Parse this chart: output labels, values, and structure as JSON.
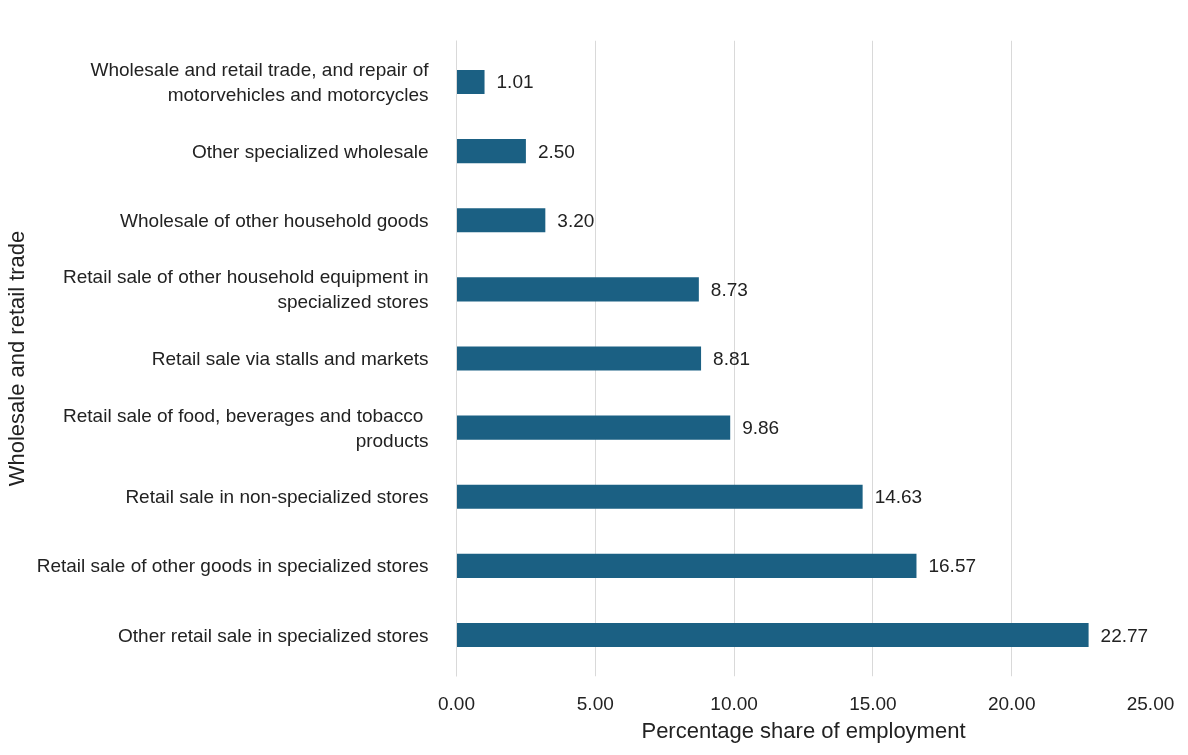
{
  "chart_data": {
    "type": "bar",
    "orientation": "horizontal",
    "xlabel": "Percentage share of employment",
    "ylabel": "Wholesale and retail trade",
    "categories": [
      "Wholesale and retail trade, and repair of\nmotorvehicles and motorcycles",
      "Other specialized wholesale",
      "Wholesale of other household goods",
      "Retail sale of other household equipment in\nspecialized stores",
      "Retail sale via stalls and markets",
      "Retail sale of food,  beverages and tobacco\nproducts",
      "Retail sale in non-specialized stores",
      "Retail sale of other goods in specialized stores",
      "Other retail sale in specialized stores"
    ],
    "values": [
      1.01,
      2.5,
      3.2,
      8.73,
      8.81,
      9.86,
      14.63,
      16.57,
      22.77
    ],
    "value_labels": [
      "1.01",
      "2.50",
      "3.20",
      "8.73",
      "8.81",
      "9.86",
      "14.63",
      "16.57",
      "22.77"
    ],
    "color": "#1b6083",
    "xlim": [
      0,
      25
    ],
    "xticks": [
      {
        "value": 0,
        "label": "0.00"
      },
      {
        "value": 5,
        "label": "5.00"
      },
      {
        "value": 10,
        "label": "10.00"
      },
      {
        "value": 15,
        "label": "15.00"
      },
      {
        "value": 20,
        "label": "20.00"
      },
      {
        "value": 25,
        "label": "25.00"
      }
    ],
    "grid": "x"
  }
}
